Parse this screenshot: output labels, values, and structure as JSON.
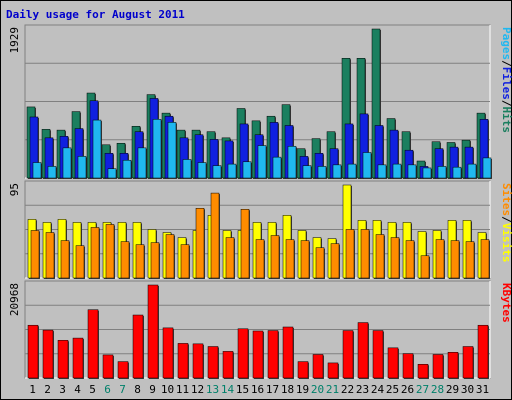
{
  "chart_data": {
    "type": "bar",
    "title": "Daily usage for August 2011",
    "days": [
      "1",
      "2",
      "3",
      "4",
      "5",
      "6",
      "7",
      "8",
      "9",
      "10",
      "11",
      "12",
      "13",
      "14",
      "15",
      "16",
      "17",
      "18",
      "19",
      "20",
      "21",
      "22",
      "23",
      "24",
      "25",
      "26",
      "27",
      "28",
      "29",
      "30",
      "31"
    ],
    "weekend_days": [
      "6",
      "7",
      "13",
      "14",
      "20",
      "21",
      "27",
      "28"
    ],
    "panels": [
      {
        "scale_max_label": "1929",
        "legend": [
          "Pages",
          "/",
          "Files",
          "/",
          "Hits"
        ],
        "series": [
          {
            "name": "Hits",
            "color": "#1b7f5f",
            "values": [
              920,
              630,
              620,
              860,
              1100,
              430,
              450,
              670,
              1080,
              840,
              620,
              620,
              600,
              520,
              900,
              740,
              800,
              950,
              380,
              510,
              600,
              1550,
              1550,
              1929,
              770,
              600,
              220,
              470,
              460,
              490,
              840
            ]
          },
          {
            "name": "Files",
            "color": "#1020e0",
            "values": [
              790,
              520,
              540,
              640,
              1000,
              320,
              320,
              600,
              1030,
              800,
              520,
              560,
              500,
              480,
              700,
              560,
              720,
              680,
              280,
              320,
              380,
              700,
              830,
              680,
              620,
              360,
              150,
              380,
              400,
              400,
              760
            ]
          },
          {
            "name": "Pages",
            "color": "#20b8f0",
            "values": [
              200,
              150,
              390,
              280,
              750,
              120,
              230,
              390,
              760,
              720,
              240,
              200,
              160,
              180,
              210,
              420,
              270,
              410,
              160,
              150,
              170,
              180,
              330,
              170,
              180,
              170,
              130,
              150,
              140,
              180,
              260
            ]
          }
        ]
      },
      {
        "scale_max_label": "95",
        "legend": [
          "Sites",
          "/",
          "Visits"
        ],
        "series": [
          {
            "name": "Visits",
            "color": "#ffff00",
            "values": [
              58,
              55,
              58,
              55,
              55,
              55,
              55,
              55,
              48,
              45,
              40,
              47,
              62,
              47,
              47,
              55,
              55,
              62,
              47,
              40,
              39,
              92,
              57,
              57,
              55,
              55,
              46,
              47,
              57,
              57,
              45
            ]
          },
          {
            "name": "Sites",
            "color": "#ff8c00",
            "values": [
              47,
              45,
              37,
              32,
              50,
              53,
              36,
              33,
              35,
              43,
              33,
              69,
              84,
              40,
              68,
              38,
              42,
              38,
              37,
              30,
              34,
              48,
              48,
              43,
              40,
              37,
              22,
              38,
              37,
              36,
              38
            ]
          }
        ]
      },
      {
        "scale_max_label": "20968",
        "legend": [
          "KBytes"
        ],
        "series": [
          {
            "name": "KBytes",
            "color": "#ff0000",
            "values": [
              11900,
              10800,
              8500,
              9000,
              15400,
              5200,
              3700,
              14200,
              20968,
              11300,
              7800,
              7700,
              7100,
              6000,
              11100,
              10600,
              10700,
              11500,
              3700,
              5300,
              3400,
              10700,
              12500,
              10700,
              6800,
              5500,
              3100,
              5300,
              5800,
              7100,
              11900
            ]
          }
        ]
      }
    ]
  }
}
